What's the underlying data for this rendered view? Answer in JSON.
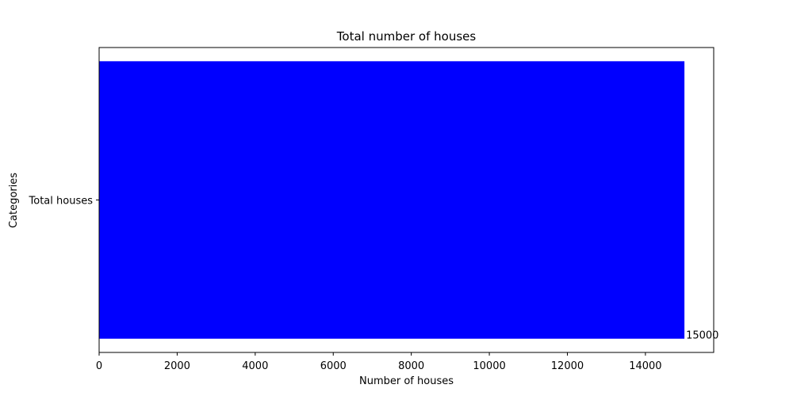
{
  "chart_data": {
    "type": "bar",
    "orientation": "horizontal",
    "title": "Total number of houses",
    "xlabel": "Number of houses",
    "ylabel": "Categories",
    "categories": [
      "Total houses"
    ],
    "values": [
      15000
    ],
    "data_labels": [
      "15000"
    ],
    "xlim": [
      0,
      15750
    ],
    "xticks": [
      0,
      2000,
      4000,
      6000,
      8000,
      10000,
      12000,
      14000
    ],
    "xtick_labels": [
      "0",
      "2000",
      "4000",
      "6000",
      "8000",
      "10000",
      "12000",
      "14000"
    ],
    "grid": false,
    "legend": "none",
    "bar_color": "#0000ff"
  }
}
